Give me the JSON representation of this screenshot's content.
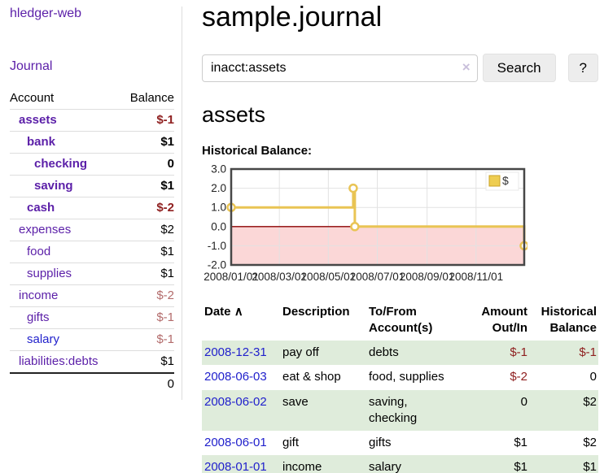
{
  "app": {
    "title": "hledger-web",
    "nav_journal": "Journal"
  },
  "colors": {
    "accent_purple": "#5b1fa8",
    "link_blue": "#2222cc",
    "negative_strong": "#8f2020",
    "negative_muted": "#b36b6b",
    "row_stripe_green": "#dfecdb",
    "chart_line_gold": "#e9c454",
    "chart_negative_area": "#fbd7d7",
    "chart_zero_line": "#8b0000"
  },
  "sidebar": {
    "header": {
      "account": "Account",
      "balance": "Balance"
    },
    "rows": [
      {
        "name": "assets",
        "balance": "$-1",
        "level": 0,
        "bold": true,
        "neg": "strong"
      },
      {
        "name": "bank",
        "balance": "$1",
        "level": 1,
        "bold": true,
        "neg": null
      },
      {
        "name": "checking",
        "balance": "0",
        "level": 2,
        "bold": true,
        "neg": null
      },
      {
        "name": "saving",
        "balance": "$1",
        "level": 2,
        "bold": true,
        "neg": null
      },
      {
        "name": "cash",
        "balance": "$-2",
        "level": 1,
        "bold": true,
        "neg": "strong"
      },
      {
        "name": "expenses",
        "balance": "$2",
        "level": 0,
        "bold": false,
        "neg": null
      },
      {
        "name": "food",
        "balance": "$1",
        "level": 1,
        "bold": false,
        "neg": null
      },
      {
        "name": "supplies",
        "balance": "$1",
        "level": 1,
        "bold": false,
        "neg": null
      },
      {
        "name": "income",
        "balance": "$-2",
        "level": 0,
        "bold": false,
        "neg": "muted"
      },
      {
        "name": "gifts",
        "balance": "$-1",
        "level": 1,
        "bold": false,
        "neg": "muted"
      },
      {
        "name": "salary",
        "balance": "$-1",
        "level": 1,
        "bold": false,
        "neg": "muted",
        "blue": true
      },
      {
        "name": "liabilities:debts",
        "balance": "$1",
        "level": 0,
        "bold": false,
        "neg": null
      }
    ],
    "total": "0"
  },
  "main": {
    "title": "sample.journal",
    "search": {
      "value": "inacct:assets",
      "clear_glyph": "×",
      "button_label": "Search",
      "help_label": "?"
    },
    "account_heading": "assets",
    "chart_heading": "Historical Balance:"
  },
  "chart_data": {
    "type": "line",
    "title": "Historical Balance",
    "series": [
      {
        "name": "$",
        "step": true,
        "points": [
          {
            "x": "2008-01-01",
            "y": 1
          },
          {
            "x": "2008-06-01",
            "y": 2
          },
          {
            "x": "2008-06-03",
            "y": 0
          },
          {
            "x": "2008-12-31",
            "y": -1
          }
        ]
      }
    ],
    "xrange": [
      "2008-01-01",
      "2008-12-31"
    ],
    "ylim": [
      -2,
      3
    ],
    "yticks": [
      3,
      2,
      1,
      0,
      -1,
      -2
    ],
    "ytick_labels": [
      "3.0",
      "2.0",
      "1.0",
      "0.0",
      "-1.0",
      "-2.0"
    ],
    "xtick_dates": [
      "2008-01-01",
      "2008-03-01",
      "2008-05-01",
      "2008-07-01",
      "2008-09-01",
      "2008-11-01"
    ],
    "xtick_labels": [
      "2008/01/01",
      "2008/03/01",
      "2008/05/01",
      "2008/07/01",
      "2008/09/01",
      "2008/11/01"
    ],
    "legend": {
      "label": "$",
      "position": "top-right"
    },
    "grid": true,
    "colors": {
      "line": "#e9c454",
      "marker_fill": "#ffffff",
      "negative_area": "#fbd7d7",
      "zero_line": "#8b0000",
      "grid": "#e2e2e2",
      "border": "#474747",
      "legend_square": "#eecd51",
      "legend_square_border": "#c9a227",
      "tick_text": "#222222"
    }
  },
  "register": {
    "headers": {
      "date": "Date",
      "sort_glyph": "∧",
      "description": "Description",
      "tofrom_line1": "To/From",
      "tofrom_line2": "Account(s)",
      "amount_line1": "Amount",
      "amount_line2": "Out/In",
      "hist_line1": "Historical",
      "hist_line2": "Balance"
    },
    "rows": [
      {
        "date": "2008-12-31",
        "description": "pay off",
        "accounts": "debts",
        "amount": "$-1",
        "amount_neg": true,
        "balance": "$-1",
        "balance_neg": true,
        "stripe": true
      },
      {
        "date": "2008-06-03",
        "description": "eat & shop",
        "accounts": "food, supplies",
        "amount": "$-2",
        "amount_neg": true,
        "balance": "0",
        "balance_neg": false,
        "stripe": false
      },
      {
        "date": "2008-06-02",
        "description": "save",
        "accounts": "saving, checking",
        "amount": "0",
        "amount_neg": false,
        "balance": "$2",
        "balance_neg": false,
        "stripe": true
      },
      {
        "date": "2008-06-01",
        "description": "gift",
        "accounts": "gifts",
        "amount": "$1",
        "amount_neg": false,
        "balance": "$2",
        "balance_neg": false,
        "stripe": false
      },
      {
        "date": "2008-01-01",
        "description": "income",
        "accounts": "salary",
        "amount": "$1",
        "amount_neg": false,
        "balance": "$1",
        "balance_neg": false,
        "stripe": true
      }
    ]
  }
}
